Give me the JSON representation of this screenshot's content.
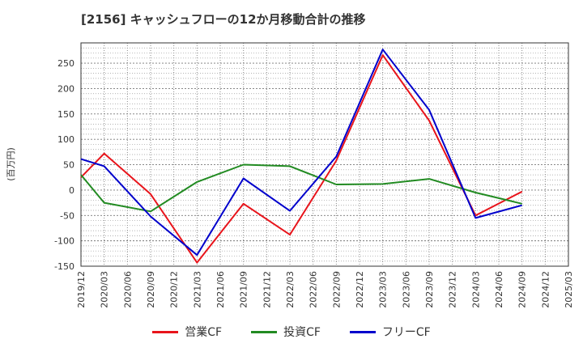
{
  "chart_data": {
    "type": "line",
    "title": "[2156]  キャッシュフローの12か月移動合計の推移",
    "ylabel": "(百万円)",
    "xlabel": "",
    "ylim": [
      -150,
      290
    ],
    "yticks": [
      -150,
      -100,
      -50,
      0,
      50,
      100,
      150,
      200,
      250
    ],
    "categories": [
      "2019/12",
      "2020/03",
      "2020/06",
      "2020/09",
      "2020/12",
      "2021/03",
      "2021/06",
      "2021/09",
      "2021/12",
      "2022/03",
      "2022/06",
      "2022/09",
      "2022/12",
      "2023/03",
      "2023/06",
      "2023/09",
      "2023/12",
      "2024/03",
      "2024/06",
      "2024/09",
      "2024/12",
      "2025/03"
    ],
    "grid": true,
    "legend_position": "bottom",
    "series": [
      {
        "name": "営業CF",
        "color": "#e8141b",
        "values": [
          25,
          72,
          null,
          -8,
          null,
          -143,
          null,
          -27,
          null,
          -88,
          null,
          58,
          null,
          266,
          null,
          137,
          null,
          -50,
          null,
          -3,
          null,
          null
        ]
      },
      {
        "name": "投資CF",
        "color": "#228b22",
        "values": [
          30,
          -25,
          null,
          -42,
          null,
          16,
          null,
          50,
          null,
          47,
          null,
          11,
          null,
          12,
          null,
          22,
          null,
          -5,
          null,
          -27,
          null,
          null
        ]
      },
      {
        "name": "フリーCF",
        "color": "#0000cc",
        "values": [
          61,
          47,
          null,
          -52,
          null,
          -128,
          null,
          23,
          null,
          -41,
          null,
          66,
          null,
          277,
          null,
          158,
          null,
          -55,
          null,
          -30,
          null,
          null
        ]
      }
    ]
  }
}
